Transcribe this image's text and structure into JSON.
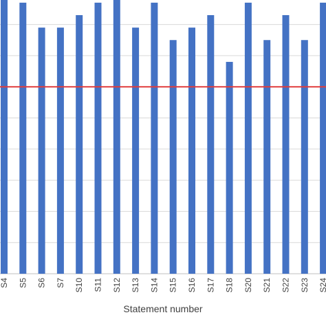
{
  "chart_data": {
    "type": "bar",
    "categories": [
      "S4",
      "S5",
      "S6",
      "S7",
      "S10",
      "S11",
      "S12",
      "S13",
      "S14",
      "S15",
      "S16",
      "S17",
      "S18",
      "S20",
      "S21",
      "S22",
      "S23",
      "S24"
    ],
    "values": [
      4.5,
      4.35,
      3.95,
      3.95,
      4.15,
      4.35,
      4.5,
      3.95,
      4.35,
      3.75,
      3.95,
      4.15,
      3.4,
      4.35,
      3.75,
      4.15,
      3.75,
      4.35
    ],
    "reference_line": 3.0,
    "ylim": [
      0,
      5
    ],
    "gridlines": [
      0,
      0.5,
      1.0,
      1.5,
      2.0,
      2.5,
      3.0,
      3.5,
      4.0,
      4.5,
      5.0
    ],
    "xlabel": "Statement number",
    "ylabel": "",
    "title": "",
    "colors": {
      "bar": "#4472C4",
      "reference_line": "#E03C3C",
      "grid": "#D9D9D9"
    },
    "grid": true
  }
}
